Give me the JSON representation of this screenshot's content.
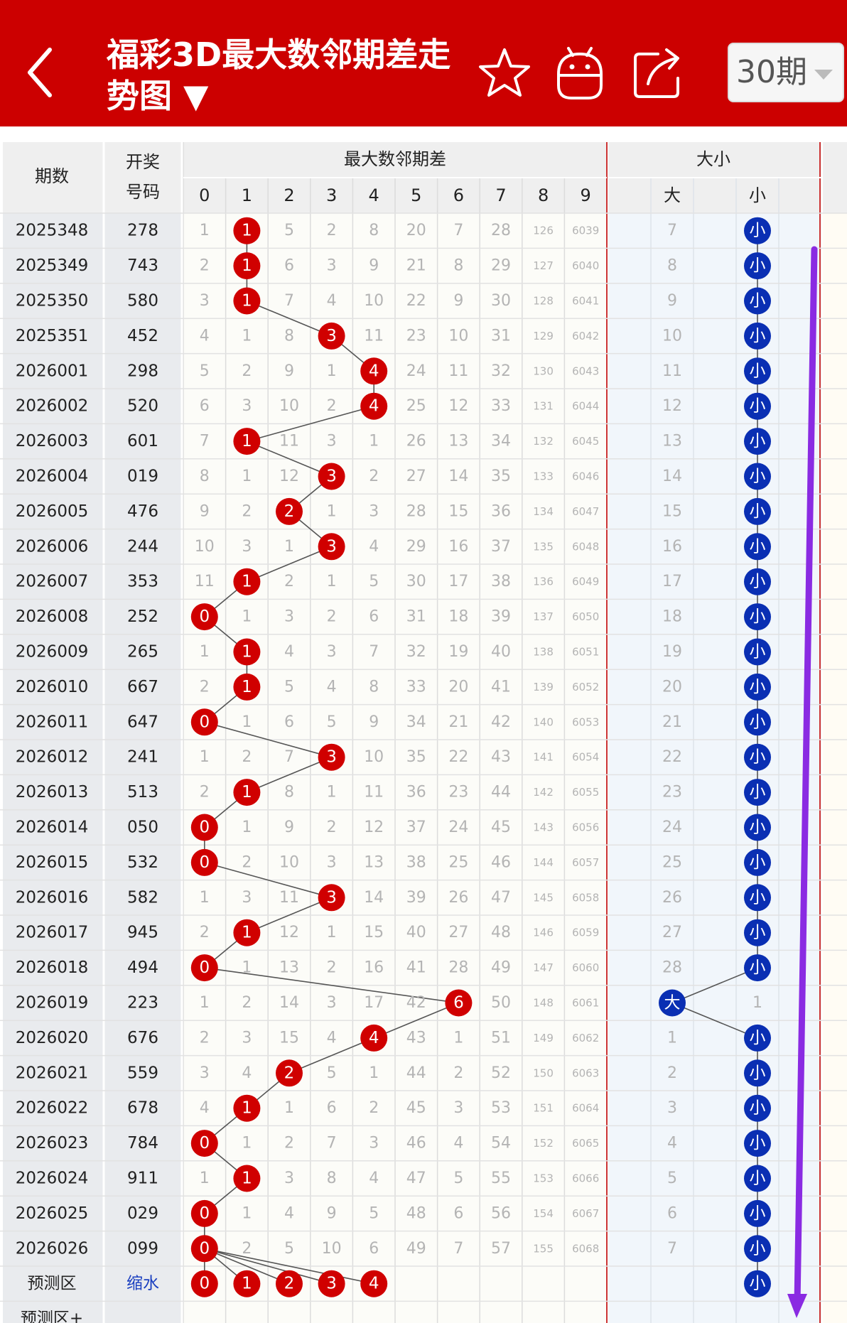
{
  "header": {
    "title": "福彩3D最大数邻期差走势图 ▼",
    "period_select": "30期",
    "icons": [
      "back-chevron-icon",
      "star-icon",
      "robot-icon",
      "share-icon",
      "dropdown-caret-icon"
    ],
    "bg_color": "#cc0000"
  },
  "table": {
    "col_period": "期数",
    "col_number_line1": "开奖",
    "col_number_line2": "号码",
    "group_diff": "最大数邻期差",
    "group_size": "大小",
    "diff_digits": [
      "0",
      "1",
      "2",
      "3",
      "4",
      "5",
      "6",
      "7",
      "8",
      "9"
    ],
    "size_labels": [
      "大",
      "",
      "小"
    ],
    "rows": [
      {
        "period": "2025348",
        "number": "278",
        "cells": [
          "1",
          "1",
          "5",
          "2",
          "8",
          "20",
          "7",
          "28",
          "126",
          "6039"
        ],
        "hit": 1,
        "size": [
          "7",
          "",
          "小"
        ],
        "size_hit": 2
      },
      {
        "period": "2025349",
        "number": "743",
        "cells": [
          "2",
          "1",
          "6",
          "3",
          "9",
          "21",
          "8",
          "29",
          "127",
          "6040"
        ],
        "hit": 1,
        "size": [
          "8",
          "",
          "小"
        ],
        "size_hit": 2
      },
      {
        "period": "2025350",
        "number": "580",
        "cells": [
          "3",
          "1",
          "7",
          "4",
          "10",
          "22",
          "9",
          "30",
          "128",
          "6041"
        ],
        "hit": 1,
        "size": [
          "9",
          "",
          "小"
        ],
        "size_hit": 2
      },
      {
        "period": "2025351",
        "number": "452",
        "cells": [
          "4",
          "1",
          "8",
          "3",
          "11",
          "23",
          "10",
          "31",
          "129",
          "6042"
        ],
        "hit": 3,
        "size": [
          "10",
          "",
          "小"
        ],
        "size_hit": 2
      },
      {
        "period": "2026001",
        "number": "298",
        "cells": [
          "5",
          "2",
          "9",
          "1",
          "4",
          "24",
          "11",
          "32",
          "130",
          "6043"
        ],
        "hit": 4,
        "size": [
          "11",
          "",
          "小"
        ],
        "size_hit": 2
      },
      {
        "period": "2026002",
        "number": "520",
        "cells": [
          "6",
          "3",
          "10",
          "2",
          "4",
          "25",
          "12",
          "33",
          "131",
          "6044"
        ],
        "hit": 4,
        "size": [
          "12",
          "",
          "小"
        ],
        "size_hit": 2
      },
      {
        "period": "2026003",
        "number": "601",
        "cells": [
          "7",
          "1",
          "11",
          "3",
          "1",
          "26",
          "13",
          "34",
          "132",
          "6045"
        ],
        "hit": 1,
        "size": [
          "13",
          "",
          "小"
        ],
        "size_hit": 2
      },
      {
        "period": "2026004",
        "number": "019",
        "cells": [
          "8",
          "1",
          "12",
          "3",
          "2",
          "27",
          "14",
          "35",
          "133",
          "6046"
        ],
        "hit": 3,
        "size": [
          "14",
          "",
          "小"
        ],
        "size_hit": 2
      },
      {
        "period": "2026005",
        "number": "476",
        "cells": [
          "9",
          "2",
          "2",
          "1",
          "3",
          "28",
          "15",
          "36",
          "134",
          "6047"
        ],
        "hit": 2,
        "size": [
          "15",
          "",
          "小"
        ],
        "size_hit": 2
      },
      {
        "period": "2026006",
        "number": "244",
        "cells": [
          "10",
          "3",
          "1",
          "3",
          "4",
          "29",
          "16",
          "37",
          "135",
          "6048"
        ],
        "hit": 3,
        "size": [
          "16",
          "",
          "小"
        ],
        "size_hit": 2
      },
      {
        "period": "2026007",
        "number": "353",
        "cells": [
          "11",
          "1",
          "2",
          "1",
          "5",
          "30",
          "17",
          "38",
          "136",
          "6049"
        ],
        "hit": 1,
        "size": [
          "17",
          "",
          "小"
        ],
        "size_hit": 2
      },
      {
        "period": "2026008",
        "number": "252",
        "cells": [
          "0",
          "1",
          "3",
          "2",
          "6",
          "31",
          "18",
          "39",
          "137",
          "6050"
        ],
        "hit": 0,
        "size": [
          "18",
          "",
          "小"
        ],
        "size_hit": 2
      },
      {
        "period": "2026009",
        "number": "265",
        "cells": [
          "1",
          "1",
          "4",
          "3",
          "7",
          "32",
          "19",
          "40",
          "138",
          "6051"
        ],
        "hit": 1,
        "size": [
          "19",
          "",
          "小"
        ],
        "size_hit": 2
      },
      {
        "period": "2026010",
        "number": "667",
        "cells": [
          "2",
          "1",
          "5",
          "4",
          "8",
          "33",
          "20",
          "41",
          "139",
          "6052"
        ],
        "hit": 1,
        "size": [
          "20",
          "",
          "小"
        ],
        "size_hit": 2
      },
      {
        "period": "2026011",
        "number": "647",
        "cells": [
          "0",
          "1",
          "6",
          "5",
          "9",
          "34",
          "21",
          "42",
          "140",
          "6053"
        ],
        "hit": 0,
        "size": [
          "21",
          "",
          "小"
        ],
        "size_hit": 2
      },
      {
        "period": "2026012",
        "number": "241",
        "cells": [
          "1",
          "2",
          "7",
          "3",
          "10",
          "35",
          "22",
          "43",
          "141",
          "6054"
        ],
        "hit": 3,
        "size": [
          "22",
          "",
          "小"
        ],
        "size_hit": 2
      },
      {
        "period": "2026013",
        "number": "513",
        "cells": [
          "2",
          "1",
          "8",
          "1",
          "11",
          "36",
          "23",
          "44",
          "142",
          "6055"
        ],
        "hit": 1,
        "size": [
          "23",
          "",
          "小"
        ],
        "size_hit": 2
      },
      {
        "period": "2026014",
        "number": "050",
        "cells": [
          "0",
          "1",
          "9",
          "2",
          "12",
          "37",
          "24",
          "45",
          "143",
          "6056"
        ],
        "hit": 0,
        "size": [
          "24",
          "",
          "小"
        ],
        "size_hit": 2
      },
      {
        "period": "2026015",
        "number": "532",
        "cells": [
          "0",
          "2",
          "10",
          "3",
          "13",
          "38",
          "25",
          "46",
          "144",
          "6057"
        ],
        "hit": 0,
        "size": [
          "25",
          "",
          "小"
        ],
        "size_hit": 2
      },
      {
        "period": "2026016",
        "number": "582",
        "cells": [
          "1",
          "3",
          "11",
          "3",
          "14",
          "39",
          "26",
          "47",
          "145",
          "6058"
        ],
        "hit": 3,
        "size": [
          "26",
          "",
          "小"
        ],
        "size_hit": 2
      },
      {
        "period": "2026017",
        "number": "945",
        "cells": [
          "2",
          "1",
          "12",
          "1",
          "15",
          "40",
          "27",
          "48",
          "146",
          "6059"
        ],
        "hit": 1,
        "size": [
          "27",
          "",
          "小"
        ],
        "size_hit": 2
      },
      {
        "period": "2026018",
        "number": "494",
        "cells": [
          "0",
          "1",
          "13",
          "2",
          "16",
          "41",
          "28",
          "49",
          "147",
          "6060"
        ],
        "hit": 0,
        "size": [
          "28",
          "",
          "小"
        ],
        "size_hit": 2
      },
      {
        "period": "2026019",
        "number": "223",
        "cells": [
          "1",
          "2",
          "14",
          "3",
          "17",
          "42",
          "6",
          "50",
          "148",
          "6061"
        ],
        "hit": 6,
        "size": [
          "大",
          "",
          "1"
        ],
        "size_hit": 0
      },
      {
        "period": "2026020",
        "number": "676",
        "cells": [
          "2",
          "3",
          "15",
          "4",
          "4",
          "43",
          "1",
          "51",
          "149",
          "6062"
        ],
        "hit": 4,
        "size": [
          "1",
          "",
          "小"
        ],
        "size_hit": 2
      },
      {
        "period": "2026021",
        "number": "559",
        "cells": [
          "3",
          "4",
          "2",
          "5",
          "1",
          "44",
          "2",
          "52",
          "150",
          "6063"
        ],
        "hit": 2,
        "size": [
          "2",
          "",
          "小"
        ],
        "size_hit": 2
      },
      {
        "period": "2026022",
        "number": "678",
        "cells": [
          "4",
          "1",
          "1",
          "6",
          "2",
          "45",
          "3",
          "53",
          "151",
          "6064"
        ],
        "hit": 1,
        "size": [
          "3",
          "",
          "小"
        ],
        "size_hit": 2
      },
      {
        "period": "2026023",
        "number": "784",
        "cells": [
          "0",
          "1",
          "2",
          "7",
          "3",
          "46",
          "4",
          "54",
          "152",
          "6065"
        ],
        "hit": 0,
        "size": [
          "4",
          "",
          "小"
        ],
        "size_hit": 2
      },
      {
        "period": "2026024",
        "number": "911",
        "cells": [
          "1",
          "1",
          "3",
          "8",
          "4",
          "47",
          "5",
          "55",
          "153",
          "6066"
        ],
        "hit": 1,
        "size": [
          "5",
          "",
          "小"
        ],
        "size_hit": 2
      },
      {
        "period": "2026025",
        "number": "029",
        "cells": [
          "0",
          "1",
          "4",
          "9",
          "5",
          "48",
          "6",
          "56",
          "154",
          "6067"
        ],
        "hit": 0,
        "size": [
          "6",
          "",
          "小"
        ],
        "size_hit": 2
      },
      {
        "period": "2026026",
        "number": "099",
        "cells": [
          "0",
          "2",
          "5",
          "10",
          "6",
          "49",
          "7",
          "57",
          "155",
          "6068"
        ],
        "hit": 0,
        "size": [
          "7",
          "",
          "小"
        ],
        "size_hit": 2
      }
    ],
    "predict": {
      "label": "预测区",
      "link": "缩水",
      "balls": [
        "0",
        "1",
        "2",
        "3",
        "4"
      ],
      "size_ball": "小"
    },
    "predict_plus": "预测区+"
  },
  "colors": {
    "red_ball": "#d00000",
    "blue_ball": "#0a2fb3",
    "arrow": "#8a2be2",
    "miss_text": "#b4b4b4",
    "row_text": "#222222"
  }
}
